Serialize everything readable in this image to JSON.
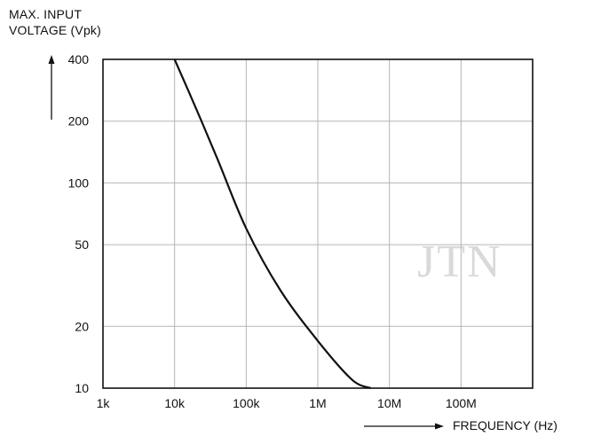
{
  "chart_data": {
    "type": "line",
    "ylabel_lines": [
      "MAX. INPUT",
      "VOLTAGE (Vpk)"
    ],
    "xlabel": "FREQUENCY (Hz)",
    "x_scale": "log",
    "y_scale": "log",
    "xlim": [
      1000,
      1000000000
    ],
    "ylim": [
      10,
      400
    ],
    "x_ticks": [
      1000,
      10000,
      100000,
      1000000,
      10000000,
      100000000
    ],
    "x_tick_labels": [
      "1k",
      "10k",
      "100k",
      "1M",
      "10M",
      "100M"
    ],
    "y_ticks": [
      10,
      20,
      50,
      100,
      200,
      400
    ],
    "y_tick_labels": [
      "10",
      "20",
      "50",
      "100",
      "200",
      "400"
    ],
    "grid": true,
    "series": [
      {
        "x": [
          10000,
          20000,
          40000,
          100000,
          300000,
          1000000,
          3000000,
          5500000
        ],
        "y": [
          400,
          230,
          130,
          60,
          30,
          17,
          11,
          10
        ]
      }
    ],
    "watermark": "JTN"
  },
  "colors": {
    "axis": "#111111",
    "grid": "#b5b5b5",
    "curve": "#111111",
    "watermark": "#d9d9d9"
  }
}
